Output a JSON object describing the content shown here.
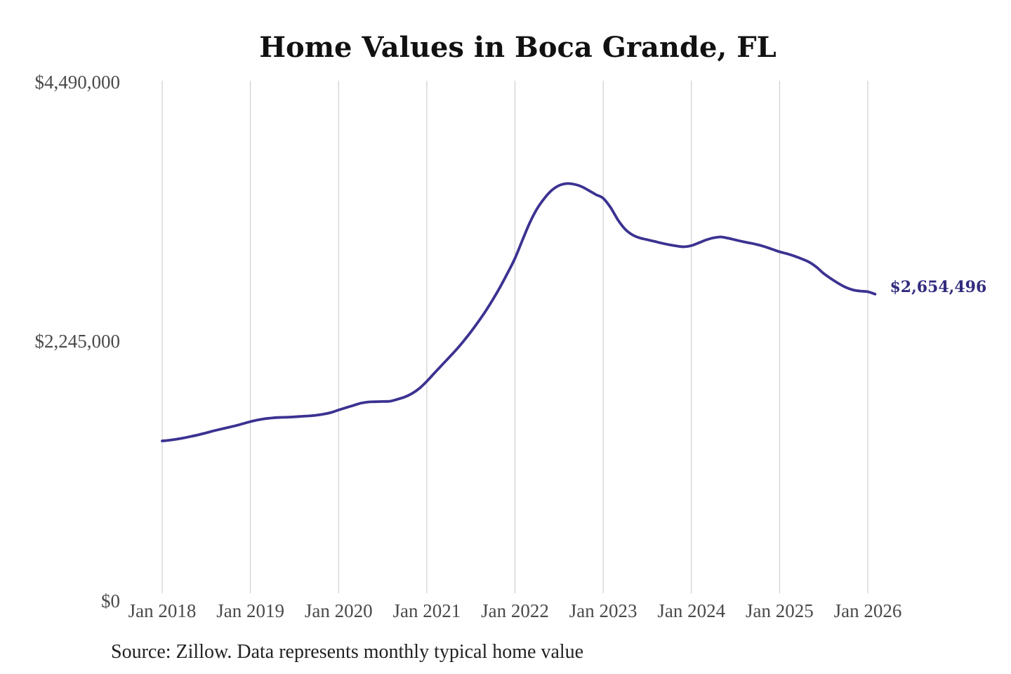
{
  "chart_data": {
    "type": "line",
    "title": "Home Values in Boca Grande, FL",
    "xlabel": "",
    "ylabel": "",
    "x_tick_labels": [
      "Jan 2018",
      "Jan 2019",
      "Jan 2020",
      "Jan 2021",
      "Jan 2022",
      "Jan 2023",
      "Jan 2024",
      "Jan 2025",
      "Jan 2026"
    ],
    "y_tick_labels": [
      "$0",
      "$2,245,000",
      "$4,490,000"
    ],
    "y_tick_values": [
      0,
      2245000,
      4490000
    ],
    "ylim": [
      0,
      4490000
    ],
    "grid": "vertical-gridlines-only",
    "legend_position": "none",
    "series": [
      {
        "name": "Typical home value",
        "months": [
          "2018-01",
          "2018-02",
          "2018-03",
          "2018-04",
          "2018-05",
          "2018-06",
          "2018-07",
          "2018-08",
          "2018-09",
          "2018-10",
          "2018-11",
          "2018-12",
          "2019-01",
          "2019-02",
          "2019-03",
          "2019-04",
          "2019-05",
          "2019-06",
          "2019-07",
          "2019-08",
          "2019-09",
          "2019-10",
          "2019-11",
          "2019-12",
          "2020-01",
          "2020-02",
          "2020-03",
          "2020-04",
          "2020-05",
          "2020-06",
          "2020-07",
          "2020-08",
          "2020-09",
          "2020-10",
          "2020-11",
          "2020-12",
          "2021-01",
          "2021-02",
          "2021-03",
          "2021-04",
          "2021-05",
          "2021-06",
          "2021-07",
          "2021-08",
          "2021-09",
          "2021-10",
          "2021-11",
          "2021-12",
          "2022-01",
          "2022-02",
          "2022-03",
          "2022-04",
          "2022-05",
          "2022-06",
          "2022-07",
          "2022-08",
          "2022-09",
          "2022-10",
          "2022-11",
          "2022-12",
          "2023-01",
          "2023-02",
          "2023-03",
          "2023-04",
          "2023-05",
          "2023-06",
          "2023-07",
          "2023-08",
          "2023-09",
          "2023-10",
          "2023-11",
          "2023-12",
          "2024-01",
          "2024-02",
          "2024-03",
          "2024-04",
          "2024-05",
          "2024-06",
          "2024-07",
          "2024-08",
          "2024-09",
          "2024-10",
          "2024-11",
          "2024-12",
          "2025-01",
          "2025-02",
          "2025-03",
          "2025-04",
          "2025-05",
          "2025-06",
          "2025-07",
          "2025-08",
          "2025-09",
          "2025-10",
          "2025-11",
          "2025-12",
          "2026-01",
          "2026-02"
        ],
        "values": [
          1383000,
          1389500,
          1398500,
          1410000,
          1423000,
          1437000,
          1453000,
          1470000,
          1485500,
          1500000,
          1515000,
          1532500,
          1550000,
          1565000,
          1575500,
          1582500,
          1586500,
          1588500,
          1591500,
          1596000,
          1600000,
          1606000,
          1615500,
          1629500,
          1651000,
          1671000,
          1690000,
          1709500,
          1720000,
          1722500,
          1724500,
          1727000,
          1743500,
          1763500,
          1794000,
          1838500,
          1899000,
          1968000,
          2036000,
          2103500,
          2172000,
          2247000,
          2327500,
          2414500,
          2507000,
          2608000,
          2718000,
          2837500,
          2964500,
          3119500,
          3270500,
          3393000,
          3483500,
          3553000,
          3595000,
          3611500,
          3606500,
          3587000,
          3553500,
          3516500,
          3484500,
          3405500,
          3298000,
          3216000,
          3167000,
          3140500,
          3125500,
          3110500,
          3095000,
          3081500,
          3071000,
          3064500,
          3074500,
          3098000,
          3123500,
          3141500,
          3149500,
          3138500,
          3123500,
          3109000,
          3096500,
          3082500,
          3065000,
          3043000,
          3021000,
          3004500,
          2984000,
          2960000,
          2932500,
          2889500,
          2833000,
          2788000,
          2747500,
          2713000,
          2690500,
          2680500,
          2675000,
          2654496
        ]
      }
    ],
    "end_label": "$2,654,496",
    "end_value": 2654496
  },
  "source_note": "Source: Zillow. Data represents monthly typical home value",
  "colors": {
    "line": "#3b3291",
    "end_label": "#322c7e",
    "grid": "#c7c7c7",
    "title": "#111111",
    "tick_label": "#4a4a4a",
    "source_text": "#222222",
    "background": "#ffffff"
  }
}
